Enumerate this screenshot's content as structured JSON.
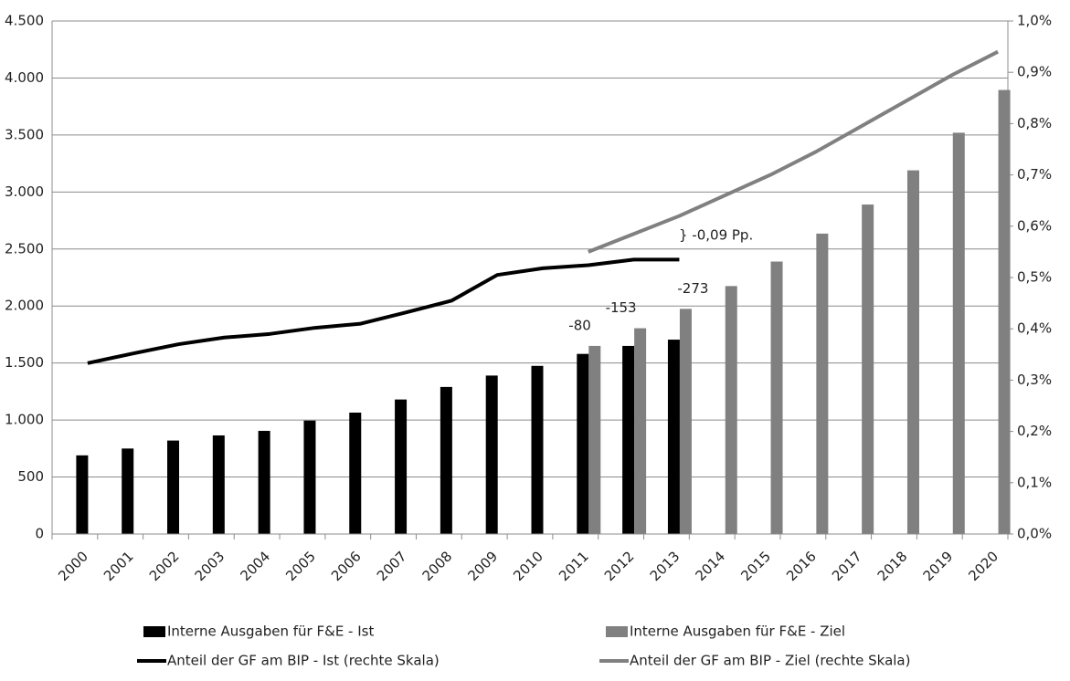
{
  "chart_data": {
    "type": "bar-line",
    "categories": [
      "2000",
      "2001",
      "2002",
      "2003",
      "2004",
      "2005",
      "2006",
      "2007",
      "2008",
      "2009",
      "2010",
      "2011",
      "2012",
      "2013",
      "2014",
      "2015",
      "2016",
      "2017",
      "2018",
      "2019",
      "2020"
    ],
    "series": [
      {
        "name": "Interne Ausgaben für F&E - Ist",
        "type": "bar",
        "color": "#000000",
        "values": [
          690,
          750,
          820,
          865,
          905,
          995,
          1065,
          1180,
          1290,
          1390,
          1475,
          1580,
          1650,
          1705,
          null,
          null,
          null,
          null,
          null,
          null,
          null
        ]
      },
      {
        "name": "Interne Ausgaben für F&E - Ziel",
        "type": "bar",
        "color": "#808080",
        "values": [
          null,
          null,
          null,
          null,
          null,
          null,
          null,
          null,
          null,
          null,
          null,
          1650,
          1805,
          1975,
          2175,
          2390,
          2635,
          2890,
          3190,
          3520,
          3895
        ]
      },
      {
        "name": "Anteil der GF am BIP - Ist (rechte Skala)",
        "type": "line",
        "axis": "y2",
        "color": "#000000",
        "values": [
          0.333,
          0.352,
          0.37,
          0.383,
          0.39,
          0.402,
          0.41,
          0.432,
          0.455,
          0.505,
          0.518,
          0.524,
          0.535,
          0.535,
          null,
          null,
          null,
          null,
          null,
          null,
          null
        ]
      },
      {
        "name": "Anteil der GF am BIP - Ziel (rechte Skala)",
        "type": "line",
        "axis": "y2",
        "color": "#808080",
        "values": [
          null,
          null,
          null,
          null,
          null,
          null,
          null,
          null,
          null,
          null,
          null,
          0.55,
          0.585,
          0.62,
          0.66,
          0.7,
          0.745,
          0.795,
          0.845,
          0.895,
          0.94
        ]
      }
    ],
    "ylim": [
      0,
      4500
    ],
    "yticks": [
      0,
      500,
      {
        "value": 1000,
        "label": "1.000"
      },
      {
        "value": 1500,
        "label": "1.500"
      },
      {
        "value": 2000,
        "label": "2.000"
      },
      {
        "value": 2500,
        "label": "2.500"
      },
      {
        "value": 3000,
        "label": "3.000"
      },
      {
        "value": 3500,
        "label": "3.500"
      },
      {
        "value": 4000,
        "label": "4.000"
      },
      {
        "value": 4500,
        "label": "4.500"
      }
    ],
    "y2lim": [
      0,
      1
    ],
    "y2ticks": [
      {
        "value": 0,
        "label": "0,0%"
      },
      {
        "value": 0.1,
        "label": "0,1%"
      },
      {
        "value": 0.2,
        "label": "0,2%"
      },
      {
        "value": 0.3,
        "label": "0,3%"
      },
      {
        "value": 0.4,
        "label": "0,4%"
      },
      {
        "value": 0.5,
        "label": "0,5%"
      },
      {
        "value": 0.6,
        "label": "0,6%"
      },
      {
        "value": 0.7,
        "label": "0,7%"
      },
      {
        "value": 0.8,
        "label": "0,8%"
      },
      {
        "value": 0.9,
        "label": "0,9%"
      },
      {
        "value": 1,
        "label": "1,0%"
      }
    ],
    "grid": true,
    "annotations": [
      "-80",
      "-153",
      "-273",
      "} -0,09 Pp."
    ]
  }
}
